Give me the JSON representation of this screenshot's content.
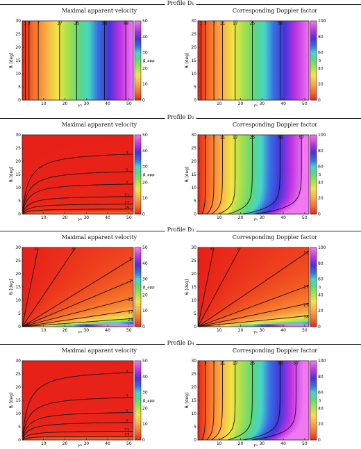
{
  "figure": {
    "rows": [
      {
        "profile_title": "Profile D₁",
        "left_title": "Maximal apparent velocity",
        "right_title": "Corresponding Doppler factor"
      },
      {
        "profile_title": "Profile D₂",
        "left_title": "Maximal apparent velocity",
        "right_title": "Corresponding Doppler factor"
      },
      {
        "profile_title": "Profile D₃",
        "left_title": "Maximal apparent velocity",
        "right_title": "Corresponding Doppler factor"
      },
      {
        "profile_title": "Profile D₄",
        "left_title": "Maximal apparent velocity",
        "right_title": "Corresponding Doppler factor"
      }
    ]
  },
  "chart_data": [
    {
      "type": "heatmap",
      "profile": "D1",
      "panel": "left",
      "title": "Maximal apparent velocity",
      "xlabel": "γ₀",
      "ylabel": "θⱼ [deg]",
      "colorbar_label": "β_app",
      "xlim": [
        0,
        52
      ],
      "ylim": [
        0,
        30
      ],
      "clim": [
        0,
        50
      ],
      "xticks": [
        10,
        20,
        30,
        40,
        50
      ],
      "yticks": [
        0,
        5,
        10,
        15,
        20,
        25,
        30
      ],
      "cticks": [
        0,
        10,
        20,
        30,
        40,
        50
      ],
      "colormap": "red-orange-yellow-green-cyan-blue-magenta",
      "field": "vertical",
      "contours": [
        {
          "level": 1,
          "label": "1",
          "x": 1.5
        },
        {
          "level": 3,
          "label": "3",
          "x": 3.2
        },
        {
          "level": 7,
          "label": "7",
          "x": 7.5
        },
        {
          "level": 17,
          "label": "17",
          "x": 17.5
        },
        {
          "level": 25,
          "label": "25",
          "x": 25.5
        },
        {
          "level": 38,
          "label": "38",
          "x": 38.5
        },
        {
          "level": 48,
          "label": "48",
          "x": 48.5
        }
      ]
    },
    {
      "type": "heatmap",
      "profile": "D1",
      "panel": "right",
      "title": "Corresponding Doppler factor",
      "xlabel": "γ₀",
      "ylabel": "θⱼ [deg]",
      "colorbar_label": "δ",
      "xlim": [
        0,
        52
      ],
      "ylim": [
        0,
        30
      ],
      "clim": [
        0,
        100
      ],
      "xticks": [
        10,
        20,
        30,
        40,
        50
      ],
      "yticks": [
        0,
        5,
        10,
        15,
        20,
        25,
        30
      ],
      "cticks": [
        0,
        20,
        40,
        60,
        80,
        100
      ],
      "colormap": "red-orange-yellow-green-cyan-blue-magenta",
      "field": "vertical",
      "contours": [
        {
          "level": 1,
          "label": "1",
          "x": 1.5
        },
        {
          "level": 3,
          "label": "3",
          "x": 3.5
        },
        {
          "level": 7,
          "label": "7",
          "x": 7.5
        },
        {
          "level": 11,
          "label": "11",
          "x": 11.5
        },
        {
          "level": 17,
          "label": "17",
          "x": 17.5
        },
        {
          "level": 25,
          "label": "25",
          "x": 25.5
        },
        {
          "level": 38,
          "label": "38",
          "x": 38.5
        }
      ]
    },
    {
      "type": "heatmap",
      "profile": "D2",
      "panel": "left",
      "title": "Maximal apparent velocity",
      "xlabel": "γ₀",
      "ylabel": "θⱼ [deg]",
      "colorbar_label": "β_app",
      "xlim": [
        0,
        52
      ],
      "ylim": [
        0,
        30
      ],
      "clim": [
        0,
        50
      ],
      "xticks": [
        10,
        20,
        30,
        40,
        50
      ],
      "yticks": [
        0,
        5,
        10,
        15,
        20,
        25,
        30
      ],
      "cticks": [
        0,
        10,
        20,
        30,
        40,
        50
      ],
      "colormap": "red-orange-yellow-green-cyan-blue-magenta",
      "field": "saturating",
      "contours": [
        {
          "level": 3,
          "label": "3",
          "plateau": 24
        },
        {
          "level": 5,
          "label": "5",
          "plateau": 17
        },
        {
          "level": 7,
          "label": "7",
          "plateau": 12
        },
        {
          "level": 11,
          "label": "11",
          "plateau": 7
        },
        {
          "level": 17,
          "label": "17",
          "plateau": 4
        },
        {
          "level": 25,
          "label": "25",
          "plateau": 2
        }
      ]
    },
    {
      "type": "heatmap",
      "profile": "D2",
      "panel": "right",
      "title": "Corresponding Doppler factor",
      "xlabel": "γ₀",
      "ylabel": "θⱼ [deg]",
      "colorbar_label": "δ",
      "xlim": [
        0,
        52
      ],
      "ylim": [
        0,
        30
      ],
      "clim": [
        0,
        100
      ],
      "xticks": [
        10,
        20,
        30,
        40,
        50
      ],
      "yticks": [
        0,
        5,
        10,
        15,
        20,
        25,
        30
      ],
      "cticks": [
        0,
        20,
        40,
        60,
        80,
        100
      ],
      "colormap": "red-orange-yellow-green-cyan-blue-magenta",
      "field": "vertical-curved",
      "contours": [
        {
          "level": 3,
          "label": "3",
          "x": 3.5
        },
        {
          "level": 7,
          "label": "7",
          "x": 7.5
        },
        {
          "level": 11,
          "label": "11",
          "x": 11.5
        },
        {
          "level": 17,
          "label": "17",
          "x": 17.5
        },
        {
          "level": 25,
          "label": "25",
          "x": 25.5
        },
        {
          "level": 38,
          "label": "38",
          "x": 38.5
        },
        {
          "level": 57,
          "label": "57",
          "x": 48.5
        }
      ]
    },
    {
      "type": "heatmap",
      "profile": "D3",
      "panel": "left",
      "title": "Maximal apparent velocity",
      "xlabel": "γ₀",
      "ylabel": "θⱼ [deg]",
      "colorbar_label": "β_app",
      "xlim": [
        0,
        52
      ],
      "ylim": [
        0,
        30
      ],
      "clim": [
        0,
        50
      ],
      "xticks": [
        10,
        20,
        30,
        40,
        50
      ],
      "yticks": [
        0,
        5,
        10,
        15,
        20,
        25,
        30
      ],
      "cticks": [
        0,
        10,
        20,
        30,
        40,
        50
      ],
      "colormap": "red-orange-yellow-green-cyan-blue-magenta",
      "field": "diagonal",
      "contours": [
        {
          "level": 2,
          "label": "2",
          "slope": 4.0
        },
        {
          "level": 3,
          "label": "3",
          "slope": 1.2
        },
        {
          "level": 5,
          "label": "5",
          "slope": 0.5
        },
        {
          "level": 7,
          "label": "7",
          "slope": 0.34
        },
        {
          "level": 11,
          "label": "11",
          "slope": 0.21
        },
        {
          "level": 17,
          "label": "17",
          "slope": 0.12
        },
        {
          "level": 25,
          "label": "25",
          "slope": 0.06
        }
      ]
    },
    {
      "type": "heatmap",
      "profile": "D3",
      "panel": "right",
      "title": "Corresponding Doppler factor",
      "xlabel": "γ₀",
      "ylabel": "θⱼ [deg]",
      "colorbar_label": "δ",
      "xlim": [
        0,
        52
      ],
      "ylim": [
        0,
        30
      ],
      "clim": [
        0,
        100
      ],
      "xticks": [
        10,
        20,
        30,
        40,
        50
      ],
      "yticks": [
        0,
        5,
        10,
        15,
        20,
        25,
        30
      ],
      "cticks": [
        0,
        20,
        40,
        60,
        80,
        100
      ],
      "colormap": "red-orange-yellow-green-cyan-blue-magenta",
      "field": "diagonal",
      "contours": [
        {
          "level": 3,
          "label": "3",
          "slope": 4.0
        },
        {
          "level": 7,
          "label": "7",
          "slope": 1.5
        },
        {
          "level": 11,
          "label": "11",
          "slope": 0.55
        },
        {
          "level": 17,
          "label": "17",
          "slope": 0.3
        },
        {
          "level": 25,
          "label": "25",
          "slope": 0.17
        },
        {
          "level": 38,
          "label": "38",
          "slope": 0.08
        }
      ]
    },
    {
      "type": "heatmap",
      "profile": "D4",
      "panel": "left",
      "title": "Maximal apparent velocity",
      "xlabel": "γ₀",
      "ylabel": "θⱼ [deg]",
      "colorbar_label": "β_app",
      "xlim": [
        0,
        52
      ],
      "ylim": [
        0,
        30
      ],
      "clim": [
        0,
        50
      ],
      "xticks": [
        10,
        20,
        30,
        40,
        50
      ],
      "yticks": [
        0,
        5,
        10,
        15,
        20,
        25,
        30
      ],
      "cticks": [
        0,
        10,
        20,
        30,
        40,
        50
      ],
      "colormap": "red-orange-yellow-green-cyan-blue-magenta",
      "field": "saturating",
      "contours": [
        {
          "level": 2,
          "label": "2",
          "plateau": 27
        },
        {
          "level": 3,
          "label": "3",
          "plateau": 17
        },
        {
          "level": 5,
          "label": "5",
          "plateau": 11
        },
        {
          "level": 7,
          "label": "7",
          "plateau": 7
        },
        {
          "level": 11,
          "label": "11",
          "plateau": 3.5
        },
        {
          "level": 17,
          "label": "17",
          "plateau": 1.5
        }
      ]
    },
    {
      "type": "heatmap",
      "profile": "D4",
      "panel": "right",
      "title": "Corresponding Doppler factor",
      "xlabel": "γ₀",
      "ylabel": "θⱼ [deg]",
      "colorbar_label": "δ",
      "xlim": [
        0,
        52
      ],
      "ylim": [
        0,
        30
      ],
      "clim": [
        0,
        100
      ],
      "xticks": [
        10,
        20,
        30,
        40,
        50
      ],
      "yticks": [
        0,
        5,
        10,
        15,
        20,
        25,
        30
      ],
      "cticks": [
        0,
        20,
        40,
        60,
        80,
        100
      ],
      "colormap": "red-orange-yellow-green-cyan-blue-magenta",
      "field": "vertical-curved",
      "contours": [
        {
          "level": 3,
          "label": "3",
          "x": 3.5
        },
        {
          "level": 7,
          "label": "7",
          "x": 7.5
        },
        {
          "level": 11,
          "label": "11",
          "x": 11.5
        },
        {
          "level": 17,
          "label": "17",
          "x": 17.5
        },
        {
          "level": 25,
          "label": "25",
          "x": 25.5
        },
        {
          "level": 38,
          "label": "38",
          "x": 38.5
        },
        {
          "level": 57,
          "label": "57",
          "x": 46
        }
      ]
    }
  ]
}
